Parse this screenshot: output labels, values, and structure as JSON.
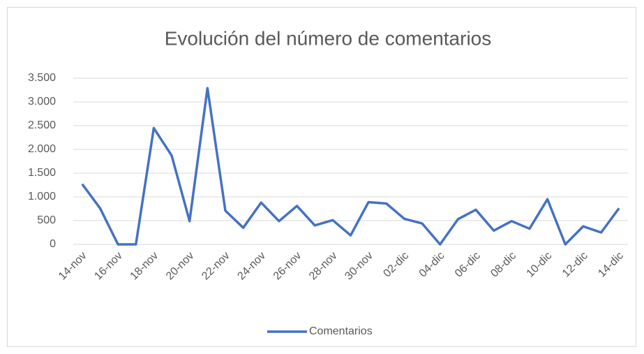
{
  "chart_data": {
    "type": "line",
    "title": "Evolución del número de comentarios",
    "categories": [
      "14-nov",
      null,
      "16-nov",
      null,
      "18-nov",
      null,
      "20-nov",
      null,
      "22-nov",
      null,
      "24-nov",
      null,
      "26-nov",
      null,
      "28-nov",
      null,
      "30-nov",
      null,
      "02-dic",
      null,
      "04-dic",
      null,
      "06-dic",
      null,
      "08-dic",
      null,
      "10-dic",
      null,
      "12-dic",
      null,
      "14-dic"
    ],
    "series": [
      {
        "name": "Comentarios",
        "color": "#4472c4",
        "values": [
          1270,
          760,
          0,
          0,
          2450,
          1870,
          490,
          3290,
          710,
          350,
          880,
          490,
          810,
          400,
          510,
          190,
          890,
          860,
          540,
          440,
          0,
          530,
          730,
          290,
          490,
          330,
          950,
          0,
          380,
          250,
          760
        ]
      }
    ],
    "ylim": [
      0,
      3500
    ],
    "yticks": [
      0,
      500,
      {
        "value": 1000,
        "label": "1.000"
      },
      {
        "value": 1500,
        "label": "1.500"
      },
      {
        "value": 2000,
        "label": "2.000"
      },
      {
        "value": 2500,
        "label": "2.500"
      },
      {
        "value": 3000,
        "label": "3.000"
      },
      {
        "value": 3500,
        "label": "3.500"
      }
    ],
    "grid": true,
    "legend": "bottom"
  }
}
